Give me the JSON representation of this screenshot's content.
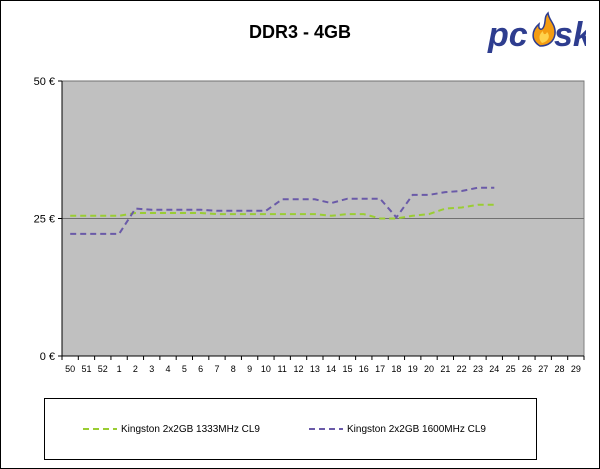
{
  "chart_data": {
    "type": "line",
    "title": "DDR3 - 4GB",
    "xlabel": "",
    "ylabel": "",
    "ylim": [
      0,
      50
    ],
    "yticks": [
      "0 €",
      "25 €",
      "50 €"
    ],
    "ytick_values": [
      0,
      25,
      50
    ],
    "grid": "horizontal",
    "plot_background": "#c0c0c0",
    "legend_position": "bottom",
    "categories": [
      "50",
      "51",
      "52",
      "1",
      "2",
      "3",
      "4",
      "5",
      "6",
      "7",
      "8",
      "9",
      "10",
      "11",
      "12",
      "13",
      "14",
      "15",
      "16",
      "17",
      "18",
      "19",
      "20",
      "21",
      "22",
      "23",
      "24",
      "25",
      "26",
      "27",
      "28",
      "29"
    ],
    "series": [
      {
        "name": "Kingston 2x2GB 1333MHz CL9",
        "color": "#9acd32",
        "values": [
          25.5,
          25.5,
          25.5,
          25.5,
          26.0,
          26.0,
          26.0,
          26.0,
          26.0,
          25.8,
          25.8,
          25.8,
          25.8,
          25.8,
          25.8,
          25.8,
          25.5,
          25.8,
          25.8,
          25.0,
          25.0,
          25.5,
          25.8,
          26.8,
          27.0,
          27.5,
          27.5,
          null,
          null,
          null,
          null,
          null
        ]
      },
      {
        "name": "Kingston 2x2GB 1600MHz CL9",
        "color": "#6a5aa8",
        "values": [
          22.2,
          22.2,
          22.2,
          22.2,
          26.8,
          26.6,
          26.6,
          26.6,
          26.6,
          26.4,
          26.4,
          26.4,
          26.4,
          28.5,
          28.5,
          28.5,
          27.8,
          28.6,
          28.6,
          28.6,
          25.2,
          29.3,
          29.3,
          29.8,
          30.0,
          30.6,
          30.6,
          null,
          null,
          null,
          null,
          null
        ]
      }
    ]
  },
  "logo": {
    "text_left": "pc",
    "text_right": "sk",
    "text_color": "#2e3d8f",
    "flame_color": "#f39c12"
  }
}
